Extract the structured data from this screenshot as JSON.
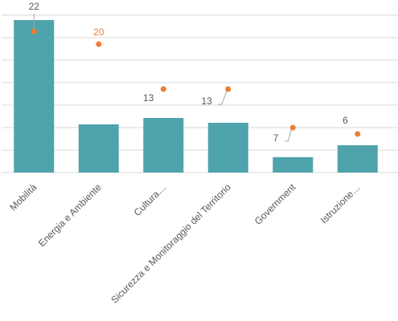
{
  "chart_data": {
    "type": "bar",
    "categories": [
      "Mobilità",
      "Energia e Ambiente",
      "Cultura…",
      "Sicurezza e Monitoraggio del Territorio",
      "Government",
      "Istruzione…"
    ],
    "series": [
      {
        "type": "bar",
        "color": "#4fa3ac",
        "values": [
          23.75,
          7.5,
          8.5,
          7.75,
          2.4,
          4.25
        ]
      },
      {
        "type": "scatter",
        "color": "#ed7d31",
        "values": [
          22,
          20,
          13,
          13,
          7,
          6
        ]
      }
    ],
    "ylim": [
      0,
      25
    ],
    "yticks": [
      0,
      3.5,
      7,
      10.5,
      14,
      17.5,
      21,
      24.5
    ],
    "grid": true
  }
}
